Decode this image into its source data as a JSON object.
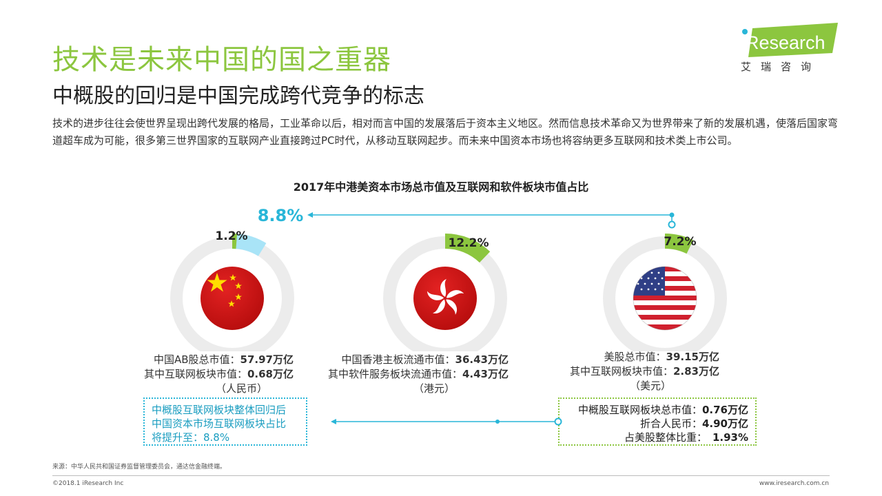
{
  "header": {
    "title": "技术是未来中国的国之重器",
    "subtitle": "中概股的回归是中国完成跨代竞争的标志",
    "intro": "技术的进步往往会使世界呈现出跨代发展的格局，工业革命以后，相对而言中国的发展落后于资本主义地区。然而信息技术革命又为世界带来了新的发展机遇，使落后国家弯道超车成为可能，很多第三世界国家的互联网产业直接跨过PC时代，从移动互联网起步。而未来中国资本市场也将容纳更多互联网和技术类上市公司。"
  },
  "logo": {
    "brand": "iResearch",
    "sub": "艾瑞咨询"
  },
  "colors": {
    "green": "#8cc63f",
    "cyan": "#29b6d8",
    "light_cyan": "#a9e4f7",
    "ring_bg": "#ececec"
  },
  "chart_data": {
    "type": "pie",
    "title": "2017年中港美资本市场总市值及互联网和软件板块市值占比",
    "annotation_top": "8.8%",
    "charts": [
      {
        "market": "china",
        "value_label": "1.2%",
        "share_pct": 1.2,
        "return_share_pct": 8.8,
        "flag_icon": "china-flag-icon",
        "line1_label": "中国AB股总市值：",
        "line1_value": "57.97万亿",
        "line2_label": "其中互联网板块市值：",
        "line2_value": "0.68万亿",
        "unit": "（人民币）"
      },
      {
        "market": "hongkong",
        "value_label": "12.2%",
        "share_pct": 12.2,
        "flag_icon": "hongkong-flag-icon",
        "line1_label": "中国香港主板流通市值：",
        "line1_value": "36.43万亿",
        "line2_label": "其中软件服务板块流通市值：",
        "line2_value": "4.43万亿",
        "unit": "（港元）"
      },
      {
        "market": "usa",
        "value_label": "7.2%",
        "share_pct": 7.2,
        "flag_icon": "usa-flag-icon",
        "line1_label": "美股总市值：",
        "line1_value": "39.15万亿",
        "line2_label": "其中互联网板块市值：",
        "line2_value": "2.83万亿",
        "unit": "（美元）"
      }
    ],
    "box_left": [
      "中概股互联网板块整体回归后",
      "中国资本市场互联网板块占比",
      "将提升至：8.8%"
    ],
    "box_right": [
      {
        "label": "中概股互联网板块总市值：",
        "value": "0.76万亿"
      },
      {
        "label": "折合人民币：",
        "value": "4.90万亿"
      },
      {
        "label": "占美股整体比重：",
        "value": "1.93%"
      }
    ]
  },
  "footer": {
    "source": "来源：中华人民共和国证券监督管理委员会，通达信金融终端。",
    "copyright": "©2018.1 iResearch Inc",
    "website": "www.iresearch.com.cn"
  }
}
